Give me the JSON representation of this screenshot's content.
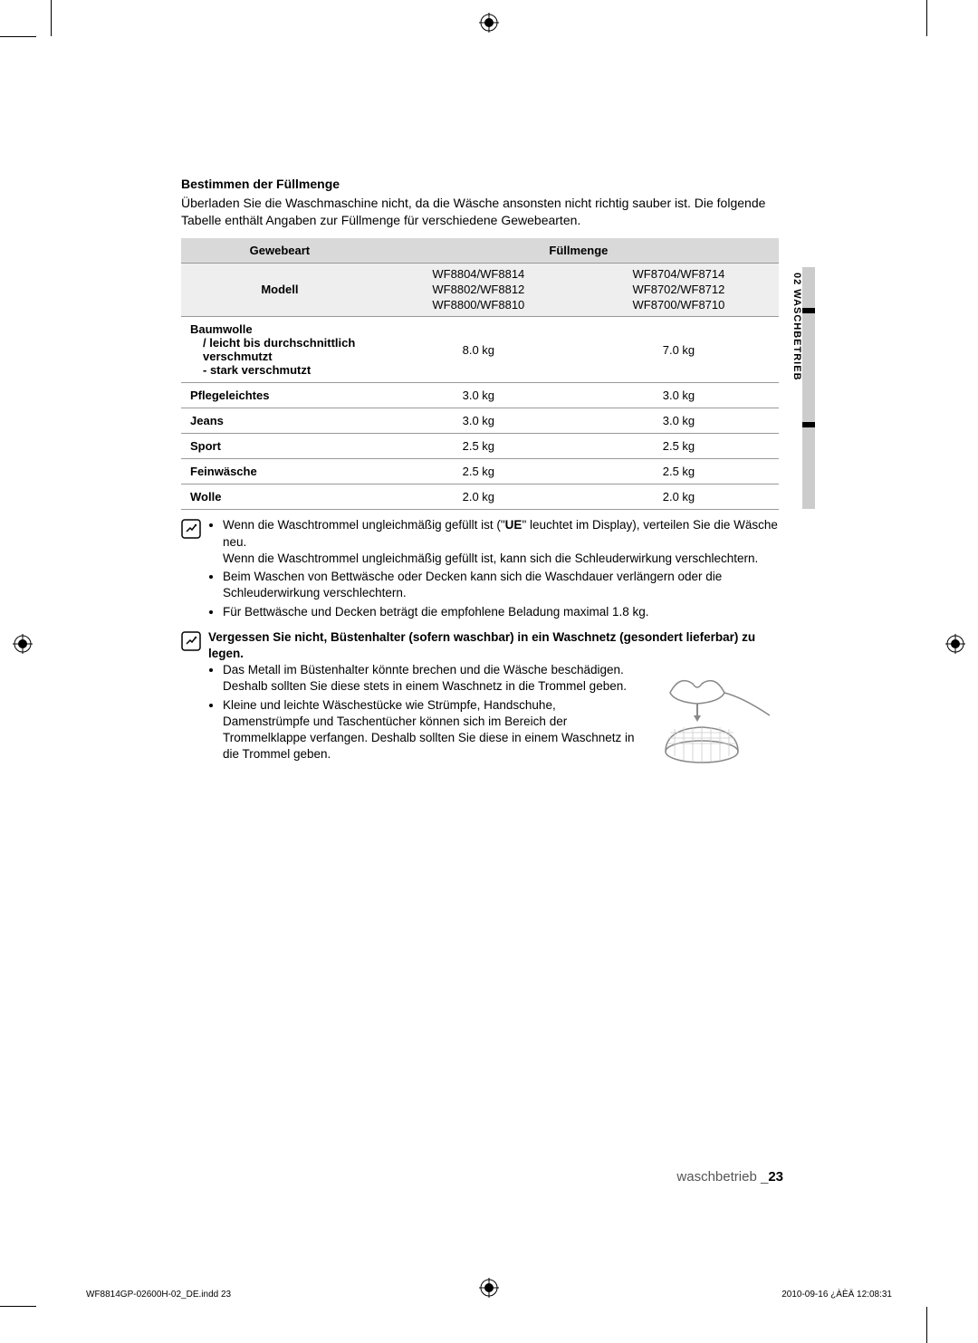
{
  "section_title": "Bestimmen der Füllmenge",
  "intro": "Überladen Sie die Waschmaschine nicht, da die Wäsche ansonsten nicht richtig sauber ist. Die folgende Tabelle enthält Angaben zur Füllmenge für verschiedene Gewebearten.",
  "table": {
    "header_left": "Gewebeart",
    "header_right": "Füllmenge",
    "model_label": "Modell",
    "model_col1": "WF8804/WF8814\nWF8802/WF8812\nWF8800/WF8810",
    "model_col2": "WF8704/WF8714\nWF8702/WF8712\nWF8700/WF8710",
    "rows": [
      {
        "label": "Baumwolle",
        "sub": [
          "/ leicht bis durchschnittlich verschmutzt",
          "- stark verschmutzt"
        ],
        "c1": "8.0 kg",
        "c2": "7.0 kg"
      },
      {
        "label": "Pflegeleichtes",
        "c1": "3.0 kg",
        "c2": "3.0 kg"
      },
      {
        "label": "Jeans",
        "c1": "3.0 kg",
        "c2": "3.0 kg"
      },
      {
        "label": "Sport",
        "c1": "2.5 kg",
        "c2": "2.5 kg"
      },
      {
        "label": "Feinwäsche",
        "c1": "2.5 kg",
        "c2": "2.5 kg"
      },
      {
        "label": "Wolle",
        "c1": "2.0 kg",
        "c2": "2.0 kg"
      }
    ]
  },
  "note1": {
    "items": [
      "Wenn die Waschtrommel ungleichmäßig gefüllt ist (\"UE\" leuchtet im Display), verteilen Sie die Wäsche neu.\nWenn die Waschtrommel ungleichmäßig gefüllt ist, kann sich die Schleuderwirkung verschlechtern.",
      "Beim Waschen von Bettwäsche oder Decken kann sich die Waschdauer verlängern oder die Schleuderwirkung verschlechtern.",
      "Für Bettwäsche und Decken beträgt die empfohlene Beladung maximal 1.8 kg."
    ]
  },
  "note2": {
    "title": "Vergessen Sie nicht, Büstenhalter (sofern waschbar) in ein Waschnetz (gesondert lieferbar) zu legen.",
    "items": [
      "Das Metall im Büstenhalter könnte brechen und die Wäsche beschädigen. Deshalb sollten Sie diese stets in einem Waschnetz in die Trommel geben.",
      "Kleine und leichte Wäschestücke wie Strümpfe, Handschuhe, Damenstrümpfe und Taschentücher können sich im Bereich der Trommelklappe verfangen. Deshalb sollten Sie diese in einem Waschnetz in die Trommel geben."
    ]
  },
  "side_tab_text": "02 WASCHBETRIEB",
  "footer_label": "waschbetrieb _",
  "footer_page": "23",
  "print_left": "WF8814GP-02600H-02_DE.indd   23",
  "print_right": "2010-09-16   ¿ÀÈÄ 12:08:31"
}
